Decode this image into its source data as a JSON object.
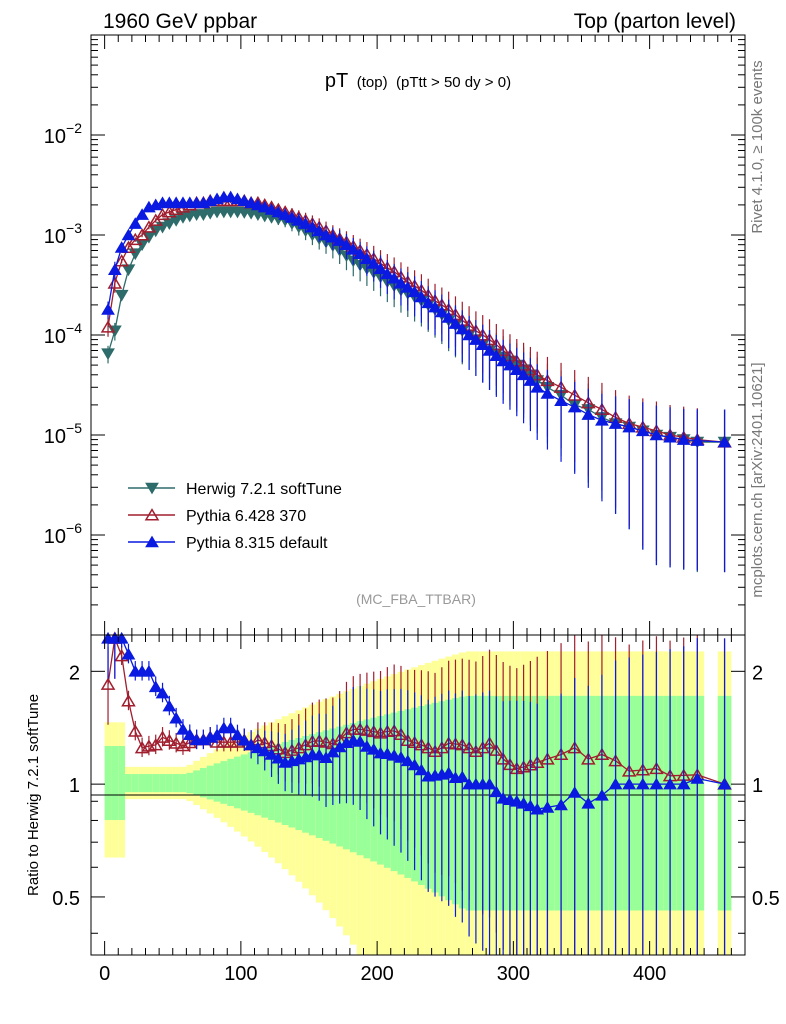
{
  "header": {
    "left": "1960 GeV ppbar",
    "right": "Top (parton level)"
  },
  "side_texts": {
    "rivet": "Rivet 4.1.0, ≥ 100k events",
    "mcplots": "mcplots.cern.ch [arXiv:2401.10621]"
  },
  "chart_data": {
    "type": "line",
    "title_main": "pT",
    "title_sub1": "(top)",
    "title_sub2": "(pTtt > 50 dy > 0)",
    "analysis_tag": "(MC_FBA_TTBAR)",
    "xlabel": "",
    "upper": {
      "ylabel": "",
      "yscale": "log",
      "ylim": [
        1e-07,
        0.1
      ],
      "ytick_labels": [
        {
          "base": "10",
          "exp": "−2",
          "value": 0.01
        },
        {
          "base": "10",
          "exp": "−3",
          "value": 0.001
        },
        {
          "base": "10",
          "exp": "−4",
          "value": 0.0001
        },
        {
          "base": "10",
          "exp": "−5",
          "value": 1e-05
        },
        {
          "base": "10",
          "exp": "−6",
          "value": 1e-06
        }
      ]
    },
    "lower": {
      "ylabel": "Ratio to Herwig 7.2.1 softTune",
      "yscale": "log",
      "ylim": [
        0.35,
        2.5
      ],
      "ytick_labels": [
        {
          "label": "2",
          "value": 2
        },
        {
          "label": "1",
          "value": 1
        },
        {
          "label": "0.5",
          "value": 0.5
        }
      ]
    },
    "xlim": [
      -10,
      470
    ],
    "xtick_labels": [
      {
        "label": "0",
        "value": 0
      },
      {
        "label": "100",
        "value": 100
      },
      {
        "label": "200",
        "value": 200
      },
      {
        "label": "300",
        "value": 300
      },
      {
        "label": "400",
        "value": 400
      }
    ],
    "legend_position": "lower-left",
    "series": [
      {
        "name": "Herwig 7.2.1 softTune",
        "color": "#2e6b6b",
        "marker": "triangle-down",
        "x": [
          2.5,
          7.5,
          12.5,
          17.5,
          22.5,
          27.5,
          32.5,
          37.5,
          42.5,
          47.5,
          52.5,
          57.5,
          62.5,
          67.5,
          72.5,
          77.5,
          82.5,
          87.5,
          92.5,
          97.5,
          102.5,
          107.5,
          112.5,
          117.5,
          122.5,
          127.5,
          132.5,
          137.5,
          142.5,
          147.5,
          152.5,
          157.5,
          162.5,
          167.5,
          172.5,
          177.5,
          182.5,
          187.5,
          192.5,
          197.5,
          202.5,
          207.5,
          212.5,
          217.5,
          222.5,
          227.5,
          232.5,
          237.5,
          242.5,
          247.5,
          252.5,
          257.5,
          262.5,
          267.5,
          272.5,
          277.5,
          282.5,
          287.5,
          292.5,
          297.5,
          302.5,
          307.5,
          312.5,
          317.5,
          325,
          335,
          345,
          355,
          365,
          375,
          385,
          395,
          405,
          415,
          425,
          435,
          455
        ],
        "values": [
          6.5e-05,
          0.00011,
          0.00025,
          0.00045,
          0.00065,
          0.0008,
          0.00095,
          0.0011,
          0.0012,
          0.0013,
          0.0014,
          0.0015,
          0.00155,
          0.0016,
          0.0016,
          0.00165,
          0.0017,
          0.0017,
          0.0017,
          0.0017,
          0.00168,
          0.00165,
          0.0016,
          0.00155,
          0.0015,
          0.00145,
          0.0014,
          0.0013,
          0.0012,
          0.0011,
          0.001,
          0.00092,
          0.00085,
          0.00078,
          0.0007,
          0.00062,
          0.00055,
          0.0005,
          0.00046,
          0.00042,
          0.00038,
          0.00034,
          0.00031,
          0.00028,
          0.00026,
          0.00024,
          0.00022,
          0.0002,
          0.00018,
          0.00016,
          0.00014,
          0.000125,
          0.00011,
          0.0001,
          9e-05,
          8e-05,
          7e-05,
          6.5e-05,
          6e-05,
          5.5e-05,
          5e-05,
          4.5e-05,
          4e-05,
          3.5e-05,
          3e-05,
          2.5e-05,
          2e-05,
          1.8e-05,
          1.5e-05,
          1.3e-05,
          1.2e-05,
          1.1e-05,
          1e-05,
          9.5e-06,
          9e-06,
          8.5e-06,
          8.5e-06
        ]
      },
      {
        "name": "Pythia 6.428 370",
        "color": "#a01e2e",
        "marker": "triangle-up-open",
        "x": [
          2.5,
          7.5,
          12.5,
          17.5,
          22.5,
          27.5,
          32.5,
          37.5,
          42.5,
          47.5,
          52.5,
          57.5,
          62.5,
          67.5,
          72.5,
          77.5,
          82.5,
          87.5,
          92.5,
          97.5,
          102.5,
          107.5,
          112.5,
          117.5,
          122.5,
          127.5,
          132.5,
          137.5,
          142.5,
          147.5,
          152.5,
          157.5,
          162.5,
          167.5,
          172.5,
          177.5,
          182.5,
          187.5,
          192.5,
          197.5,
          202.5,
          207.5,
          212.5,
          217.5,
          222.5,
          227.5,
          232.5,
          237.5,
          242.5,
          247.5,
          252.5,
          257.5,
          262.5,
          267.5,
          272.5,
          277.5,
          282.5,
          287.5,
          292.5,
          297.5,
          302.5,
          307.5,
          312.5,
          317.5,
          325,
          335,
          345,
          355,
          365,
          375,
          385,
          395,
          405,
          415,
          425,
          435,
          455
        ],
        "values": [
          0.00012,
          0.00033,
          0.00055,
          0.00075,
          0.0009,
          0.001,
          0.0012,
          0.0014,
          0.0016,
          0.0017,
          0.0018,
          0.0019,
          0.002,
          0.0021,
          0.0021,
          0.0022,
          0.0022,
          0.0022,
          0.0022,
          0.0022,
          0.0022,
          0.0021,
          0.0021,
          0.002,
          0.0019,
          0.0018,
          0.0017,
          0.0016,
          0.0015,
          0.0014,
          0.0013,
          0.0012,
          0.0011,
          0.001,
          0.00092,
          0.00085,
          0.00077,
          0.0007,
          0.00064,
          0.00058,
          0.00052,
          0.00047,
          0.00043,
          0.00038,
          0.00034,
          0.00031,
          0.00028,
          0.00025,
          0.00022,
          0.0002,
          0.00018,
          0.00016,
          0.00014,
          0.000125,
          0.00011,
          0.0001,
          9e-05,
          8e-05,
          7e-05,
          6.2e-05,
          5.5e-05,
          5e-05,
          4.5e-05,
          4e-05,
          3.5e-05,
          3e-05,
          2.5e-05,
          2.1e-05,
          1.8e-05,
          1.5e-05,
          1.3e-05,
          1.2e-05,
          1.1e-05,
          1e-05,
          9.5e-06,
          9e-06,
          8.5e-06
        ]
      },
      {
        "name": "Pythia 8.315 default",
        "color": "#0a1ae0",
        "marker": "triangle-up",
        "x": [
          2.5,
          7.5,
          12.5,
          17.5,
          22.5,
          27.5,
          32.5,
          37.5,
          42.5,
          47.5,
          52.5,
          57.5,
          62.5,
          67.5,
          72.5,
          77.5,
          82.5,
          87.5,
          92.5,
          97.5,
          102.5,
          107.5,
          112.5,
          117.5,
          122.5,
          127.5,
          132.5,
          137.5,
          142.5,
          147.5,
          152.5,
          157.5,
          162.5,
          167.5,
          172.5,
          177.5,
          182.5,
          187.5,
          192.5,
          197.5,
          202.5,
          207.5,
          212.5,
          217.5,
          222.5,
          227.5,
          232.5,
          237.5,
          242.5,
          247.5,
          252.5,
          257.5,
          262.5,
          267.5,
          272.5,
          277.5,
          282.5,
          287.5,
          292.5,
          297.5,
          302.5,
          307.5,
          312.5,
          317.5,
          325,
          335,
          345,
          355,
          365,
          375,
          385,
          395,
          405,
          415,
          425,
          435,
          455
        ],
        "values": [
          0.00018,
          0.00045,
          0.00075,
          0.001,
          0.0013,
          0.0016,
          0.0019,
          0.002,
          0.0021,
          0.0021,
          0.0021,
          0.0021,
          0.0021,
          0.0021,
          0.0021,
          0.0022,
          0.0023,
          0.0024,
          0.0024,
          0.0023,
          0.0022,
          0.0021,
          0.002,
          0.0019,
          0.0018,
          0.0017,
          0.0016,
          0.0015,
          0.0014,
          0.0013,
          0.0012,
          0.0011,
          0.001,
          0.00095,
          0.00088,
          0.0008,
          0.00072,
          0.00065,
          0.00058,
          0.00052,
          0.00046,
          0.00041,
          0.00037,
          0.00033,
          0.0003,
          0.00027,
          0.00024,
          0.00021,
          0.00019,
          0.00017,
          0.00015,
          0.00013,
          0.000115,
          0.0001,
          9e-05,
          8e-05,
          7e-05,
          6.2e-05,
          5.5e-05,
          5e-05,
          4.5e-05,
          4e-05,
          3.5e-05,
          3e-05,
          2.6e-05,
          2.2e-05,
          1.9e-05,
          1.6e-05,
          1.4e-05,
          1.3e-05,
          1.2e-05,
          1.1e-05,
          1e-05,
          9.5e-06,
          9e-06,
          8.8e-06,
          8.5e-06
        ]
      }
    ]
  }
}
